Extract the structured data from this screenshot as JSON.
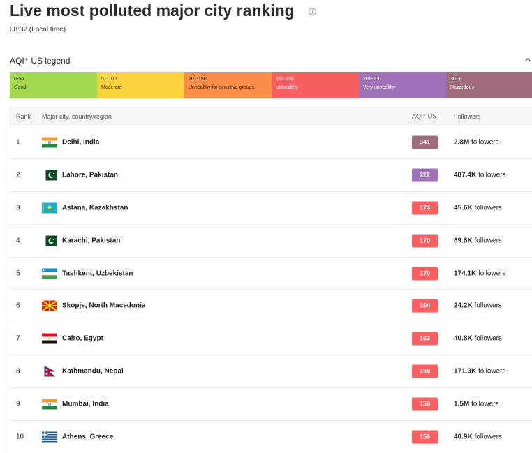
{
  "header": {
    "title": "Live most polluted major city ranking",
    "local_time": "08:32 (Local time)"
  },
  "legend": {
    "title": "AQI⁺ US legend",
    "items": [
      {
        "range": "0-50",
        "label": "Good",
        "color": "#a3d94f",
        "text_color": "#2f3d12"
      },
      {
        "range": "51-100",
        "label": "Moderate",
        "color": "#fbd13c",
        "text_color": "#4a3d08"
      },
      {
        "range": "101-150",
        "label": "Unhealthy for sensitive groups",
        "color": "#fa8e4a",
        "text_color": "#4a2810"
      },
      {
        "range": "151-200",
        "label": "Unhealthy",
        "color": "#f95e61",
        "text_color": "#ffffff"
      },
      {
        "range": "201-300",
        "label": "Very unhealthy",
        "color": "#a071b8",
        "text_color": "#ffffff"
      },
      {
        "range": "301+",
        "label": "Hazardous",
        "color": "#a16d7c",
        "text_color": "#ffffff"
      }
    ]
  },
  "table": {
    "columns": [
      "Rank",
      "Major city, country/region",
      "AQI⁺ US",
      "Followers"
    ],
    "rows": [
      {
        "rank": 1,
        "city": "Delhi, India",
        "aqi": 341,
        "aqi_color": "#a16d7c",
        "followers": "2.8M",
        "followers_unit": "followers"
      },
      {
        "rank": 2,
        "city": "Lahore, Pakistan",
        "aqi": 222,
        "aqi_color": "#a071b8",
        "followers": "487.4K",
        "followers_unit": "followers"
      },
      {
        "rank": 3,
        "city": "Astana, Kazakhstan",
        "aqi": 174,
        "aqi_color": "#f95e61",
        "followers": "45.6K",
        "followers_unit": "followers"
      },
      {
        "rank": 4,
        "city": "Karachi, Pakistan",
        "aqi": 170,
        "aqi_color": "#f95e61",
        "followers": "89.8K",
        "followers_unit": "followers"
      },
      {
        "rank": 5,
        "city": "Tashkent, Uzbekistan",
        "aqi": 170,
        "aqi_color": "#f95e61",
        "followers": "174.1K",
        "followers_unit": "followers"
      },
      {
        "rank": 6,
        "city": "Skopje, North Macedonia",
        "aqi": 164,
        "aqi_color": "#f95e61",
        "followers": "24.2K",
        "followers_unit": "followers"
      },
      {
        "rank": 7,
        "city": "Cairo, Egypt",
        "aqi": 163,
        "aqi_color": "#f95e61",
        "followers": "40.8K",
        "followers_unit": "followers"
      },
      {
        "rank": 8,
        "city": "Kathmandu, Nepal",
        "aqi": 158,
        "aqi_color": "#f95e61",
        "followers": "171.3K",
        "followers_unit": "followers"
      },
      {
        "rank": 9,
        "city": "Mumbai, India",
        "aqi": 158,
        "aqi_color": "#f95e61",
        "followers": "1.5M",
        "followers_unit": "followers"
      },
      {
        "rank": 10,
        "city": "Athens, Greece",
        "aqi": 156,
        "aqi_color": "#f95e61",
        "followers": "40.9K",
        "followers_unit": "followers"
      }
    ]
  }
}
